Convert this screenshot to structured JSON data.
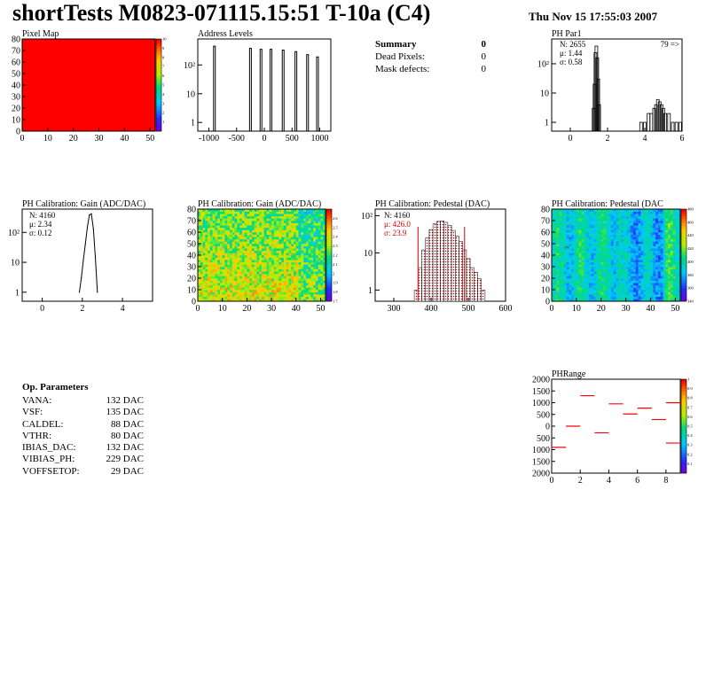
{
  "header": {
    "title": "shortTests M0823-071115.15:51 T-10a (C4)",
    "date": "Thu Nov 15 17:55:03 2007"
  },
  "summary": {
    "title": "Summary",
    "title_value": "0",
    "rows": [
      {
        "label": "Dead Pixels:",
        "value": "0"
      },
      {
        "label": "Mask defects:",
        "value": "0"
      }
    ]
  },
  "op_params": {
    "title": "Op. Parameters",
    "rows": [
      {
        "label": "VANA:",
        "value": "132 DAC"
      },
      {
        "label": "VSF:",
        "value": "135 DAC"
      },
      {
        "label": "CALDEL:",
        "value": "88 DAC"
      },
      {
        "label": "VTHR:",
        "value": "80 DAC"
      },
      {
        "label": "IBIAS_DAC:",
        "value": "132 DAC"
      },
      {
        "label": "VIBIAS_PH:",
        "value": "229 DAC"
      },
      {
        "label": "VOFFSETOP:",
        "value": "29 DAC"
      }
    ]
  },
  "colors": {
    "pixel_fill": "#ff0000",
    "pedestal_hatch": "#8b0000",
    "red_text": "#dd0000",
    "phrange_mark": "#ff0000"
  },
  "chart_data": [
    {
      "id": "pixelmap",
      "type": "heatmap",
      "title": "Pixel Map",
      "xlim": [
        0,
        52
      ],
      "ylim": [
        0,
        80
      ],
      "xticks": [
        "0",
        "10",
        "20",
        "30",
        "40",
        "50"
      ],
      "yticks": [
        "0",
        "10",
        "20",
        "30",
        "40",
        "50",
        "60",
        "70",
        "80"
      ],
      "value_all": 10,
      "zlim": [
        0,
        10
      ],
      "zticks": [
        "1",
        "2",
        "3",
        "4",
        "5",
        "6",
        "7",
        "8",
        "9",
        "10"
      ]
    },
    {
      "id": "address",
      "type": "bar",
      "title": "Address Levels",
      "log_y": true,
      "xlim": [
        -1200,
        1200
      ],
      "ylim": [
        0.5,
        800
      ],
      "xticks": [
        "-1000",
        "-500",
        "0",
        "500",
        "1000"
      ],
      "yticks": [
        "1",
        "10",
        "10²"
      ],
      "peaks": [
        {
          "x": -900,
          "y": 450
        },
        {
          "x": -250,
          "y": 380
        },
        {
          "x": -60,
          "y": 350
        },
        {
          "x": 120,
          "y": 350
        },
        {
          "x": 340,
          "y": 330
        },
        {
          "x": 570,
          "y": 290
        },
        {
          "x": 780,
          "y": 230
        },
        {
          "x": 960,
          "y": 190
        }
      ]
    },
    {
      "id": "phpar1",
      "type": "bar",
      "title": "PH Par1",
      "log_y": true,
      "xlim": [
        -1,
        6
      ],
      "ylim": [
        0.5,
        700
      ],
      "xticks": [
        "0",
        "2",
        "4",
        "6"
      ],
      "yticks": [
        "1",
        "10",
        "10²"
      ],
      "stats": [
        "N: 2655",
        "μ: 1.44",
        "σ: 0.58"
      ],
      "overflow_label": "79 =>",
      "bins": [
        {
          "x": 1.25,
          "y": 3
        },
        {
          "x": 1.3,
          "y": 20
        },
        {
          "x": 1.35,
          "y": 240
        },
        {
          "x": 1.4,
          "y": 400
        },
        {
          "x": 1.45,
          "y": 160
        },
        {
          "x": 1.5,
          "y": 30
        },
        {
          "x": 1.55,
          "y": 4
        },
        {
          "x": 3.8,
          "y": 1
        },
        {
          "x": 4.0,
          "y": 1
        },
        {
          "x": 4.2,
          "y": 2
        },
        {
          "x": 4.35,
          "y": 2
        },
        {
          "x": 4.5,
          "y": 3
        },
        {
          "x": 4.6,
          "y": 4
        },
        {
          "x": 4.7,
          "y": 6
        },
        {
          "x": 4.8,
          "y": 5
        },
        {
          "x": 4.9,
          "y": 4
        },
        {
          "x": 5.0,
          "y": 3
        },
        {
          "x": 5.1,
          "y": 2
        },
        {
          "x": 5.3,
          "y": 2
        },
        {
          "x": 5.5,
          "y": 1
        },
        {
          "x": 5.7,
          "y": 1
        },
        {
          "x": 5.9,
          "y": 1
        }
      ]
    },
    {
      "id": "gain1d",
      "type": "line",
      "title": "PH Calibration: Gain (ADC/DAC)",
      "log_y": true,
      "xlim": [
        -1,
        5.5
      ],
      "ylim": [
        0.5,
        600
      ],
      "xticks": [
        "0",
        "2",
        "4"
      ],
      "yticks": [
        "1",
        "10",
        "10²"
      ],
      "stats": [
        "N: 4160",
        "μ: 2.34",
        "σ: 0.12"
      ],
      "x": [
        1.85,
        1.95,
        2.05,
        2.15,
        2.25,
        2.35,
        2.45,
        2.55,
        2.65,
        2.75
      ],
      "y": [
        1,
        3,
        12,
        40,
        150,
        380,
        420,
        130,
        15,
        1
      ]
    },
    {
      "id": "gain2d",
      "type": "heatmap",
      "title": "PH Calibration: Gain (ADC/DAC)",
      "xlim": [
        0,
        52
      ],
      "ylim": [
        0,
        80
      ],
      "xticks": [
        "0",
        "10",
        "20",
        "30",
        "40",
        "50"
      ],
      "yticks": [
        "0",
        "10",
        "20",
        "30",
        "40",
        "50",
        "60",
        "70",
        "80"
      ],
      "zlim": [
        1.7,
        2.7
      ],
      "zticks": [
        "1.7",
        "1.8",
        "1.9",
        "2",
        "2.1",
        "2.2",
        "2.3",
        "2.4",
        "2.5",
        "2.6"
      ]
    },
    {
      "id": "pedestal1d",
      "type": "bar",
      "title": "PH Calibration: Pedestal (DAC)",
      "log_y": true,
      "xlim": [
        250,
        600
      ],
      "ylim": [
        0.5,
        150
      ],
      "xticks": [
        "300",
        "400",
        "500",
        "600"
      ],
      "yticks": [
        "1",
        "10",
        "10²"
      ],
      "stats": [
        "N: 4160"
      ],
      "fit_stats": [
        "μ: 426.0",
        "σ: 23.9"
      ],
      "fit_range": [
        365,
        490
      ],
      "x": [
        360,
        370,
        380,
        390,
        400,
        410,
        420,
        430,
        440,
        450,
        460,
        470,
        480,
        490,
        500,
        510,
        520,
        530,
        540
      ],
      "y": [
        1,
        4,
        12,
        25,
        42,
        60,
        70,
        72,
        66,
        55,
        40,
        28,
        20,
        12,
        7,
        4,
        3,
        2,
        1
      ]
    },
    {
      "id": "pedestal2d",
      "type": "heatmap",
      "title": "PH Calibration: Pedestal (DAC",
      "xlim": [
        0,
        52
      ],
      "ylim": [
        0,
        80
      ],
      "xticks": [
        "0",
        "10",
        "20",
        "30",
        "40",
        "50"
      ],
      "yticks": [
        "0",
        "10",
        "20",
        "30",
        "40",
        "50",
        "60",
        "70",
        "80"
      ],
      "zlim": [
        340,
        480
      ],
      "zticks": [
        "340",
        "360",
        "380",
        "400",
        "420",
        "440",
        "460",
        "480"
      ]
    },
    {
      "id": "phrange",
      "type": "scatter",
      "title": "PHRange",
      "xlim": [
        0,
        9
      ],
      "ylim": [
        -2000,
        2000
      ],
      "xticks": [
        "0",
        "2",
        "4",
        "6",
        "8"
      ],
      "yticks": [
        "-2000",
        "-1500",
        "-1000",
        "-500",
        "0",
        "500",
        "1000",
        "1500",
        "2000"
      ],
      "ytick_labels": [
        "2000",
        "1500",
        "1000",
        "500",
        "0",
        "500",
        "1000",
        "1500",
        "2000"
      ],
      "x": [
        0.5,
        1.5,
        2.5,
        3.5,
        4.5,
        5.5,
        6.5,
        7.5,
        8.5
      ],
      "y": [
        -900,
        0,
        1300,
        -280,
        950,
        520,
        770,
        280,
        1000
      ],
      "extra_point": {
        "x": 8.5,
        "y": -720
      },
      "zticks": [
        "0.1",
        "0.2",
        "0.3",
        "0.4",
        "0.5",
        "0.6",
        "0.7",
        "0.8",
        "0.9",
        "1"
      ]
    }
  ]
}
